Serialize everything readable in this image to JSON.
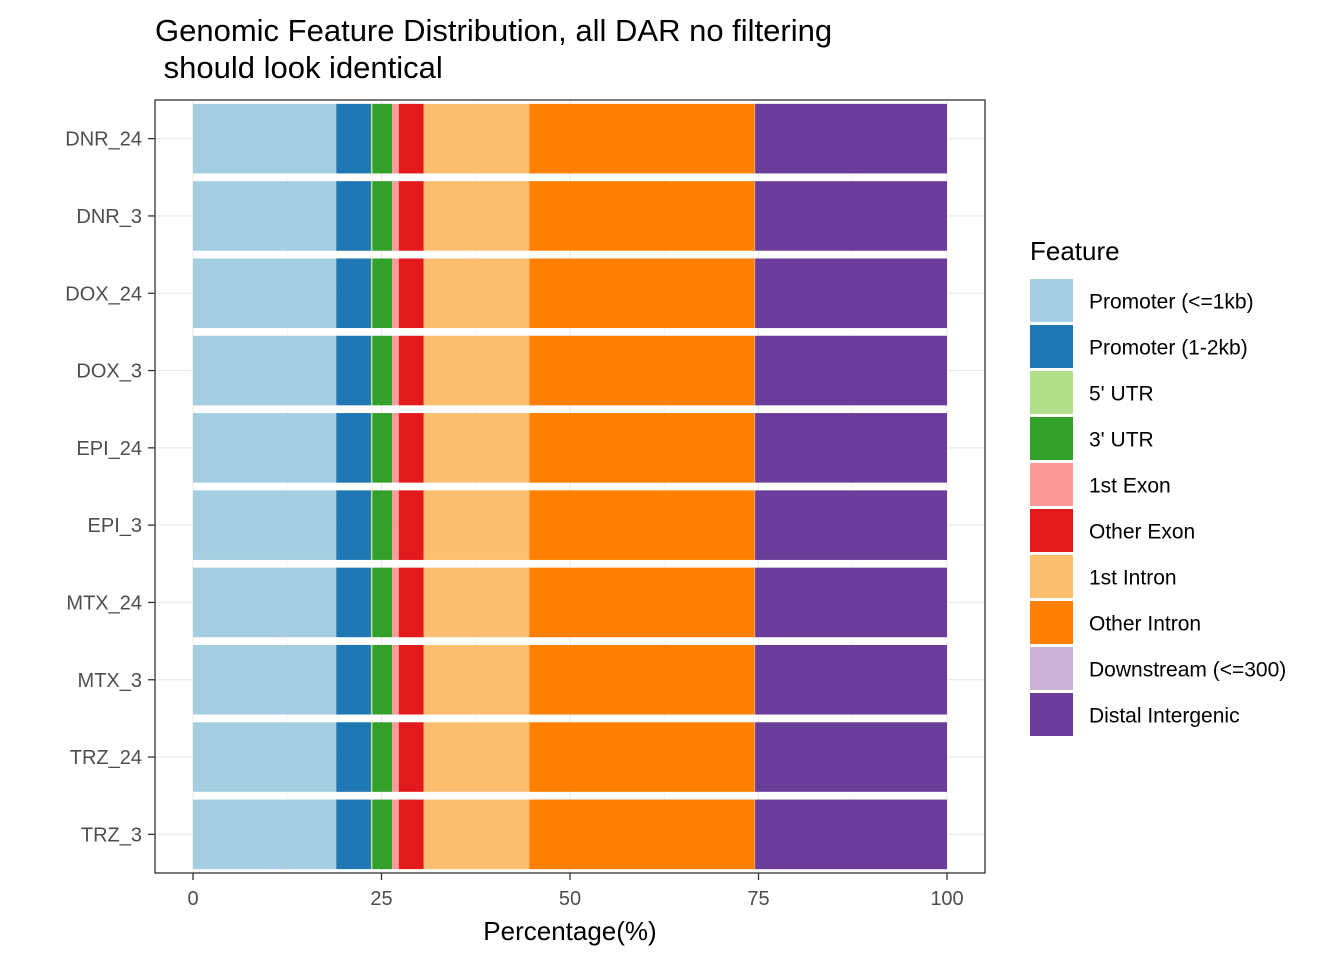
{
  "chart_data": {
    "type": "bar",
    "orientation": "horizontal",
    "stacked": true,
    "title_lines": [
      "Genomic Feature Distribution, all DAR no filtering",
      " should look identical"
    ],
    "xlabel": "Percentage(%)",
    "ylabel": "",
    "xlim": [
      0,
      100
    ],
    "xticks": [
      0,
      25,
      50,
      75,
      100
    ],
    "grid": true,
    "legend": {
      "title": "Feature",
      "position": "right"
    },
    "categories": [
      "DNR_24",
      "DNR_3",
      "DOX_24",
      "DOX_3",
      "EPI_24",
      "EPI_3",
      "MTX_24",
      "MTX_3",
      "TRZ_24",
      "TRZ_3"
    ],
    "series": [
      {
        "name": "Promoter (<=1kb)",
        "color": "#a6cee3",
        "values": [
          19.0,
          19.0,
          19.0,
          19.0,
          19.0,
          19.0,
          19.0,
          19.0,
          19.0,
          19.0
        ]
      },
      {
        "name": "Promoter (1-2kb)",
        "color": "#1f78b4",
        "values": [
          4.6,
          4.6,
          4.6,
          4.6,
          4.6,
          4.6,
          4.6,
          4.6,
          4.6,
          4.6
        ]
      },
      {
        "name": "5' UTR",
        "color": "#b2df8a",
        "values": [
          0.2,
          0.2,
          0.2,
          0.2,
          0.2,
          0.2,
          0.2,
          0.2,
          0.2,
          0.2
        ]
      },
      {
        "name": "3' UTR",
        "color": "#33a02c",
        "values": [
          2.6,
          2.6,
          2.6,
          2.6,
          2.6,
          2.6,
          2.6,
          2.6,
          2.6,
          2.6
        ]
      },
      {
        "name": "1st Exon",
        "color": "#fb9a99",
        "values": [
          0.9,
          0.9,
          0.9,
          0.9,
          0.9,
          0.9,
          0.9,
          0.9,
          0.9,
          0.9
        ]
      },
      {
        "name": "Other Exon",
        "color": "#e31a1c",
        "values": [
          3.3,
          3.3,
          3.3,
          3.3,
          3.3,
          3.3,
          3.3,
          3.3,
          3.3,
          3.3
        ]
      },
      {
        "name": "1st Intron",
        "color": "#fdbf6f",
        "values": [
          14.0,
          14.0,
          14.0,
          14.0,
          14.0,
          14.0,
          14.0,
          14.0,
          14.0,
          14.0
        ]
      },
      {
        "name": "Other Intron",
        "color": "#ff7f00",
        "values": [
          29.9,
          29.9,
          29.9,
          29.9,
          29.9,
          29.9,
          29.9,
          29.9,
          29.9,
          29.9
        ]
      },
      {
        "name": "Downstream (<=300)",
        "color": "#cab2d6",
        "values": [
          0.05,
          0.05,
          0.05,
          0.05,
          0.05,
          0.05,
          0.05,
          0.05,
          0.05,
          0.05
        ]
      },
      {
        "name": "Distal Intergenic",
        "color": "#6a3d9a",
        "values": [
          25.45,
          25.45,
          25.45,
          25.45,
          25.45,
          25.45,
          25.45,
          25.45,
          25.45,
          25.45
        ]
      }
    ]
  }
}
